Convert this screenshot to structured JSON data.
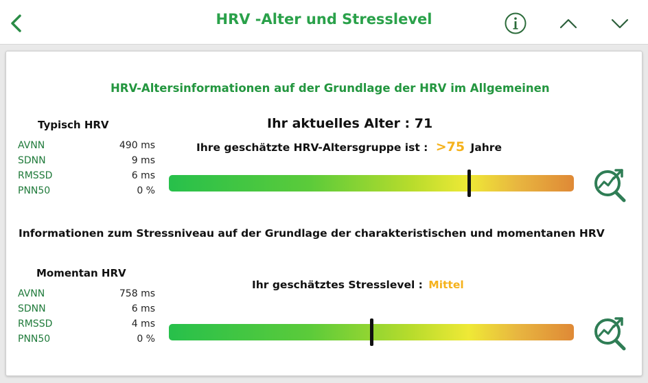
{
  "header": {
    "title": "HRV -Alter und Stresslevel",
    "back_icon": "chevron-left-icon",
    "info_icon": "info-circle-icon",
    "up_icon": "chevron-up-icon",
    "down_icon": "chevron-down-icon",
    "accent_color": "#2aa14a"
  },
  "age_section": {
    "title": "HRV-Altersinformationen auf der Grundlage der HRV im Allgemeinen",
    "panel_title": "Typisch HRV",
    "metrics": [
      {
        "label": "AVNN",
        "value": "490 ms"
      },
      {
        "label": "SDNN",
        "value": "9 ms"
      },
      {
        "label": "RMSSD",
        "value": "6 ms"
      },
      {
        "label": "PNN50",
        "value": "0 %"
      }
    ],
    "current_age": "Ihr aktuelles Alter : 71",
    "group_prefix": "Ihre geschätzte HRV-Altersgruppe ist :",
    "group_value": ">75",
    "group_suffix": "Jahre",
    "bar_level": 0.74,
    "analyze_icon": "chart-magnifier-icon"
  },
  "stress_section": {
    "title": "Informationen zum Stressniveau auf der Grundlage der charakteristischen und momentanen HRV",
    "panel_title": "Momentan HRV",
    "metrics": [
      {
        "label": "AVNN",
        "value": "758 ms"
      },
      {
        "label": "SDNN",
        "value": "6 ms"
      },
      {
        "label": "RMSSD",
        "value": "4 ms"
      },
      {
        "label": "PNN50",
        "value": "0 %"
      }
    ],
    "stress_prefix": "Ihr geschätztes Stresslevel :",
    "stress_value": "Mittel",
    "bar_level": 0.5,
    "analyze_icon": "chart-magnifier-icon"
  },
  "colors": {
    "label_green": "#1f7a3a",
    "highlight_yellow": "#f5b21c",
    "bar_start": "#27c04b",
    "bar_end": "#df8936"
  }
}
